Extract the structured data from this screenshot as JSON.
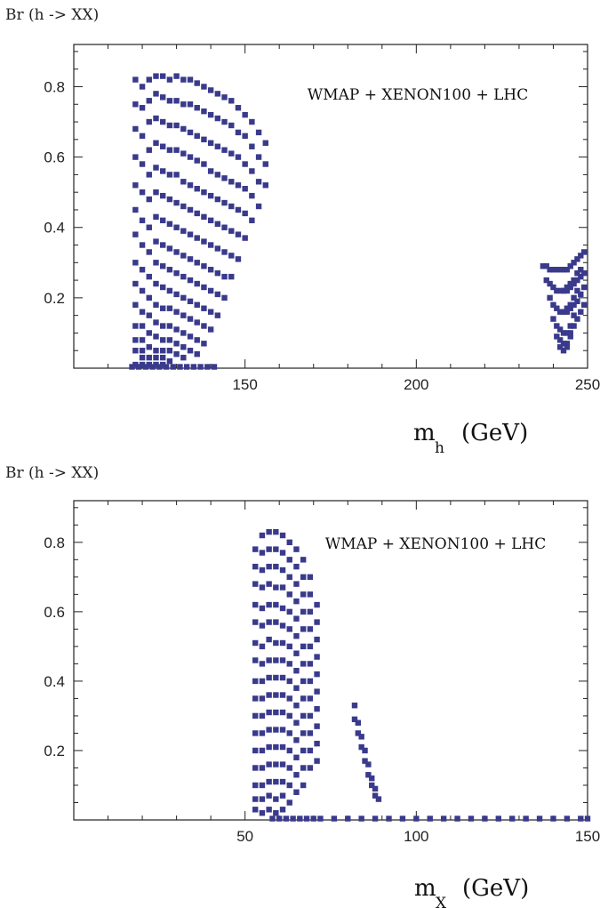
{
  "chart_data": [
    {
      "type": "scatter",
      "ylabel": "Br (h -> XX)",
      "xlabel_symbol": "m",
      "xlabel_subscript": "h",
      "xlabel_unit": "(GeV)",
      "annotation": "WMAP + XENON100 + LHC",
      "xlim": [
        100,
        250
      ],
      "ylim": [
        0,
        0.92
      ],
      "xticks": [
        150,
        200,
        250
      ],
      "yticks": [
        0.2,
        0.4,
        0.6,
        0.8
      ],
      "marker_color": "#3a3a8c",
      "series": [
        {
          "x": [
            118,
            118,
            118,
            118,
            118,
            118,
            118,
            118,
            118,
            118,
            118,
            118,
            118,
            118,
            120,
            120,
            120,
            120,
            120,
            120,
            120,
            120,
            120,
            120,
            120,
            120,
            120,
            120,
            120,
            122,
            122,
            122,
            122,
            122,
            122,
            122,
            122,
            122,
            122,
            122,
            122,
            122,
            122,
            122,
            124,
            124,
            124,
            124,
            124,
            124,
            124,
            124,
            124,
            124,
            124,
            124,
            124,
            124,
            124,
            124,
            126,
            126,
            126,
            126,
            126,
            126,
            126,
            126,
            126,
            126,
            126,
            126,
            126,
            126,
            126,
            126,
            128,
            128,
            128,
            128,
            128,
            128,
            128,
            128,
            128,
            128,
            128,
            128,
            128,
            128,
            128,
            130,
            130,
            130,
            130,
            130,
            130,
            130,
            130,
            130,
            130,
            130,
            130,
            130,
            130,
            132,
            132,
            132,
            132,
            132,
            132,
            132,
            132,
            132,
            132,
            132,
            132,
            132,
            132,
            134,
            134,
            134,
            134,
            134,
            134,
            134,
            134,
            134,
            134,
            134,
            134,
            134,
            136,
            136,
            136,
            136,
            136,
            136,
            136,
            136,
            136,
            136,
            136,
            136,
            136,
            138,
            138,
            138,
            138,
            138,
            138,
            138,
            138,
            138,
            138,
            138,
            138,
            140,
            140,
            140,
            140,
            140,
            140,
            140,
            140,
            140,
            140,
            140,
            142,
            142,
            142,
            142,
            142,
            142,
            142,
            142,
            142,
            142,
            144,
            144,
            144,
            144,
            144,
            144,
            144,
            144,
            144,
            146,
            146,
            146,
            146,
            146,
            146,
            146,
            146,
            148,
            148,
            148,
            148,
            148,
            148,
            148,
            150,
            150,
            150,
            150,
            150,
            150,
            152,
            152,
            152,
            152,
            152,
            154,
            154,
            154,
            154,
            156,
            156,
            156,
            237,
            238,
            239,
            240,
            241,
            242,
            243,
            244,
            245,
            246,
            247,
            248,
            249,
            238,
            239,
            240,
            241,
            242,
            243,
            244,
            245,
            246,
            247,
            248,
            239,
            240,
            241,
            242,
            243,
            244,
            245,
            246,
            247,
            240,
            241,
            242,
            243,
            244,
            245,
            246,
            241,
            242,
            243,
            244,
            245,
            242,
            243,
            244,
            243,
            244,
            245,
            246,
            247,
            248,
            249,
            244,
            245,
            246,
            247,
            248,
            249,
            245,
            246,
            247,
            248,
            249
          ],
          "y": [
            0.82,
            0.75,
            0.68,
            0.6,
            0.52,
            0.45,
            0.38,
            0.3,
            0.24,
            0.18,
            0.12,
            0.08,
            0.05,
            0.01,
            0.8,
            0.74,
            0.66,
            0.58,
            0.5,
            0.42,
            0.35,
            0.28,
            0.22,
            0.16,
            0.12,
            0.08,
            0.05,
            0.03,
            0.01,
            0.82,
            0.76,
            0.7,
            0.62,
            0.55,
            0.48,
            0.4,
            0.33,
            0.26,
            0.2,
            0.15,
            0.1,
            0.06,
            0.03,
            0.01,
            0.83,
            0.78,
            0.71,
            0.64,
            0.57,
            0.5,
            0.43,
            0.36,
            0.3,
            0.24,
            0.18,
            0.13,
            0.09,
            0.05,
            0.03,
            0.01,
            0.83,
            0.77,
            0.7,
            0.63,
            0.56,
            0.49,
            0.42,
            0.35,
            0.29,
            0.23,
            0.17,
            0.12,
            0.08,
            0.05,
            0.03,
            0.01,
            0.82,
            0.76,
            0.69,
            0.62,
            0.55,
            0.48,
            0.41,
            0.34,
            0.28,
            0.22,
            0.17,
            0.12,
            0.08,
            0.05,
            0.02,
            0.83,
            0.76,
            0.69,
            0.62,
            0.55,
            0.47,
            0.4,
            0.33,
            0.27,
            0.21,
            0.16,
            0.11,
            0.07,
            0.04,
            0.82,
            0.75,
            0.68,
            0.61,
            0.53,
            0.46,
            0.39,
            0.32,
            0.26,
            0.2,
            0.15,
            0.1,
            0.06,
            0.03,
            0.82,
            0.75,
            0.67,
            0.6,
            0.52,
            0.45,
            0.38,
            0.31,
            0.25,
            0.19,
            0.14,
            0.09,
            0.05,
            0.81,
            0.74,
            0.66,
            0.59,
            0.51,
            0.44,
            0.37,
            0.3,
            0.24,
            0.18,
            0.13,
            0.08,
            0.04,
            0.8,
            0.73,
            0.65,
            0.58,
            0.5,
            0.43,
            0.36,
            0.29,
            0.23,
            0.17,
            0.12,
            0.07,
            0.79,
            0.72,
            0.64,
            0.56,
            0.49,
            0.42,
            0.35,
            0.28,
            0.22,
            0.16,
            0.11,
            0.78,
            0.71,
            0.63,
            0.55,
            0.48,
            0.41,
            0.34,
            0.27,
            0.21,
            0.15,
            0.77,
            0.7,
            0.62,
            0.54,
            0.47,
            0.4,
            0.33,
            0.26,
            0.2,
            0.76,
            0.69,
            0.61,
            0.53,
            0.46,
            0.39,
            0.32,
            0.26,
            0.74,
            0.67,
            0.6,
            0.52,
            0.45,
            0.38,
            0.31,
            0.72,
            0.66,
            0.58,
            0.51,
            0.44,
            0.37,
            0.7,
            0.63,
            0.56,
            0.49,
            0.42,
            0.67,
            0.6,
            0.53,
            0.46,
            0.64,
            0.58,
            0.52,
            0.29,
            0.29,
            0.28,
            0.28,
            0.28,
            0.28,
            0.28,
            0.28,
            0.29,
            0.3,
            0.31,
            0.32,
            0.33,
            0.25,
            0.24,
            0.23,
            0.22,
            0.22,
            0.22,
            0.23,
            0.24,
            0.25,
            0.27,
            0.28,
            0.2,
            0.18,
            0.17,
            0.16,
            0.16,
            0.17,
            0.18,
            0.2,
            0.22,
            0.14,
            0.12,
            0.11,
            0.1,
            0.1,
            0.12,
            0.15,
            0.09,
            0.08,
            0.07,
            0.07,
            0.09,
            0.06,
            0.05,
            0.06,
            0.22,
            0.22,
            0.23,
            0.24,
            0.25,
            0.26,
            0.27,
            0.16,
            0.17,
            0.18,
            0.19,
            0.21,
            0.23,
            0.1,
            0.12,
            0.14,
            0.16,
            0.18
          ]
        },
        {
          "x": [
            117,
            119,
            121,
            123,
            125,
            127,
            129,
            131,
            133,
            135,
            137,
            139,
            141
          ],
          "y": [
            0,
            0,
            0,
            0,
            0,
            0,
            0,
            0,
            0,
            0,
            0,
            0,
            0
          ]
        }
      ]
    },
    {
      "type": "scatter",
      "ylabel": "Br (h -> XX)",
      "xlabel_symbol": "m",
      "xlabel_subscript": "X",
      "xlabel_unit": "(GeV)",
      "annotation": "WMAP + XENON100 + LHC",
      "xlim": [
        0,
        150
      ],
      "ylim": [
        0,
        0.92
      ],
      "xticks": [
        50,
        100,
        150
      ],
      "yticks": [
        0.2,
        0.4,
        0.6,
        0.8
      ],
      "marker_color": "#3a3a8c",
      "series": [
        {
          "x": [
            53,
            53,
            53,
            53,
            53,
            53,
            53,
            53,
            53,
            53,
            53,
            53,
            53,
            53,
            53,
            53,
            55,
            55,
            55,
            55,
            55,
            55,
            55,
            55,
            55,
            55,
            55,
            55,
            55,
            55,
            55,
            55,
            55,
            57,
            57,
            57,
            57,
            57,
            57,
            57,
            57,
            57,
            57,
            57,
            57,
            57,
            57,
            57,
            57,
            57,
            59,
            59,
            59,
            59,
            59,
            59,
            59,
            59,
            59,
            59,
            59,
            59,
            59,
            59,
            59,
            59,
            59,
            61,
            61,
            61,
            61,
            61,
            61,
            61,
            61,
            61,
            61,
            61,
            61,
            61,
            61,
            61,
            61,
            61,
            63,
            63,
            63,
            63,
            63,
            63,
            63,
            63,
            63,
            63,
            63,
            63,
            63,
            63,
            63,
            63,
            65,
            65,
            65,
            65,
            65,
            65,
            65,
            65,
            65,
            65,
            65,
            65,
            65,
            65,
            65,
            67,
            67,
            67,
            67,
            67,
            67,
            67,
            67,
            67,
            67,
            67,
            67,
            67,
            67,
            69,
            69,
            69,
            69,
            69,
            69,
            69,
            69,
            69,
            69,
            69,
            69,
            71,
            71,
            71,
            71,
            71,
            71,
            71,
            71,
            71,
            71,
            82,
            83,
            84,
            85,
            86,
            87,
            88,
            89,
            82,
            83,
            84,
            85,
            86,
            87,
            88
          ],
          "y": [
            0.78,
            0.73,
            0.68,
            0.62,
            0.57,
            0.51,
            0.46,
            0.4,
            0.35,
            0.3,
            0.25,
            0.2,
            0.15,
            0.1,
            0.06,
            0.03,
            0.82,
            0.77,
            0.72,
            0.67,
            0.61,
            0.56,
            0.5,
            0.45,
            0.4,
            0.35,
            0.3,
            0.25,
            0.2,
            0.15,
            0.1,
            0.06,
            0.02,
            0.83,
            0.78,
            0.73,
            0.68,
            0.62,
            0.57,
            0.52,
            0.46,
            0.41,
            0.36,
            0.31,
            0.26,
            0.21,
            0.16,
            0.11,
            0.07,
            0.03,
            0.83,
            0.78,
            0.73,
            0.67,
            0.62,
            0.57,
            0.51,
            0.46,
            0.41,
            0.36,
            0.31,
            0.26,
            0.21,
            0.16,
            0.11,
            0.06,
            0.02,
            0.82,
            0.77,
            0.72,
            0.67,
            0.61,
            0.56,
            0.51,
            0.46,
            0.41,
            0.36,
            0.31,
            0.26,
            0.21,
            0.16,
            0.11,
            0.07,
            0.03,
            0.8,
            0.75,
            0.7,
            0.65,
            0.6,
            0.55,
            0.5,
            0.45,
            0.4,
            0.35,
            0.3,
            0.25,
            0.2,
            0.15,
            0.1,
            0.05,
            0.78,
            0.73,
            0.68,
            0.63,
            0.58,
            0.53,
            0.48,
            0.43,
            0.38,
            0.33,
            0.28,
            0.23,
            0.18,
            0.13,
            0.08,
            0.75,
            0.7,
            0.65,
            0.6,
            0.55,
            0.5,
            0.45,
            0.4,
            0.35,
            0.3,
            0.25,
            0.2,
            0.15,
            0.1,
            0.7,
            0.65,
            0.6,
            0.55,
            0.5,
            0.45,
            0.4,
            0.35,
            0.3,
            0.25,
            0.2,
            0.15,
            0.62,
            0.57,
            0.52,
            0.47,
            0.42,
            0.37,
            0.32,
            0.27,
            0.22,
            0.17,
            0.33,
            0.28,
            0.24,
            0.2,
            0.16,
            0.12,
            0.09,
            0.06,
            0.29,
            0.25,
            0.21,
            0.17,
            0.13,
            0.1,
            0.07
          ]
        },
        {
          "x": [
            58,
            60,
            62,
            64,
            66,
            68,
            70,
            72,
            76,
            80,
            84,
            88,
            92,
            96,
            100,
            104,
            108,
            112,
            116,
            120,
            124,
            128,
            132,
            136,
            140,
            144,
            148,
            150
          ],
          "y": [
            0,
            0,
            0,
            0,
            0,
            0,
            0,
            0,
            0,
            0,
            0,
            0,
            0,
            0,
            0,
            0,
            0,
            0,
            0,
            0,
            0,
            0,
            0,
            0,
            0,
            0,
            0,
            0
          ]
        }
      ]
    }
  ]
}
